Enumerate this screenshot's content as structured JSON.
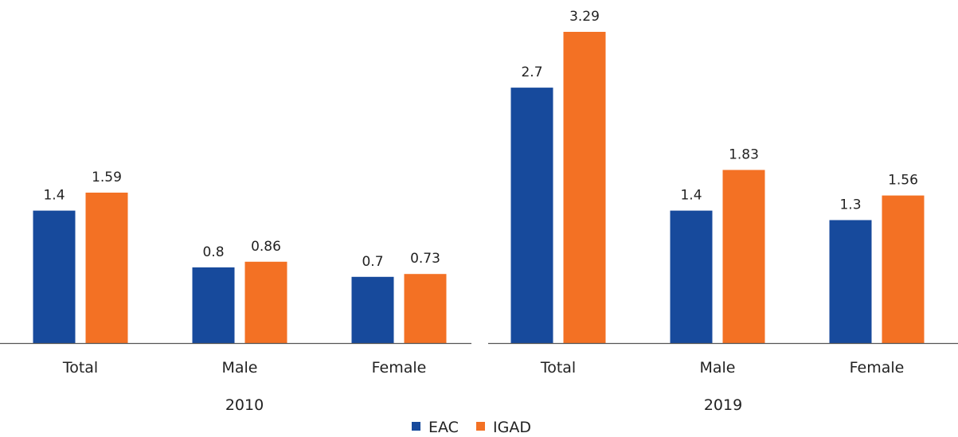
{
  "chart_data": {
    "type": "bar",
    "groups": [
      {
        "name": "2010",
        "categories": [
          "Total",
          "Male",
          "Female"
        ],
        "series": [
          {
            "name": "EAC",
            "values": [
              1.4,
              0.8,
              0.7
            ]
          },
          {
            "name": "IGAD",
            "values": [
              1.59,
              0.86,
              0.73
            ]
          }
        ]
      },
      {
        "name": "2019",
        "categories": [
          "Total",
          "Male",
          "Female"
        ],
        "series": [
          {
            "name": "EAC",
            "values": [
              2.7,
              1.4,
              1.3
            ]
          },
          {
            "name": "IGAD",
            "values": [
              3.29,
              1.83,
              1.56
            ]
          }
        ]
      }
    ],
    "value_labels": {
      "2010": {
        "EAC": [
          "1.4",
          "0.8",
          "0.7"
        ],
        "IGAD": [
          "1.59",
          "0.86",
          "0.73"
        ]
      },
      "2019": {
        "EAC": [
          "2.7",
          "1.4",
          "1.3"
        ],
        "IGAD": [
          "3.29",
          "1.83",
          "1.56"
        ]
      }
    },
    "legend": {
      "position": "bottom",
      "entries": [
        "EAC",
        "IGAD"
      ]
    },
    "colors": {
      "EAC": "#174a9c",
      "IGAD": "#f37124",
      "axis": "#555555",
      "text": "#222222"
    },
    "grid": false,
    "ylim": [
      0,
      3.55
    ]
  }
}
